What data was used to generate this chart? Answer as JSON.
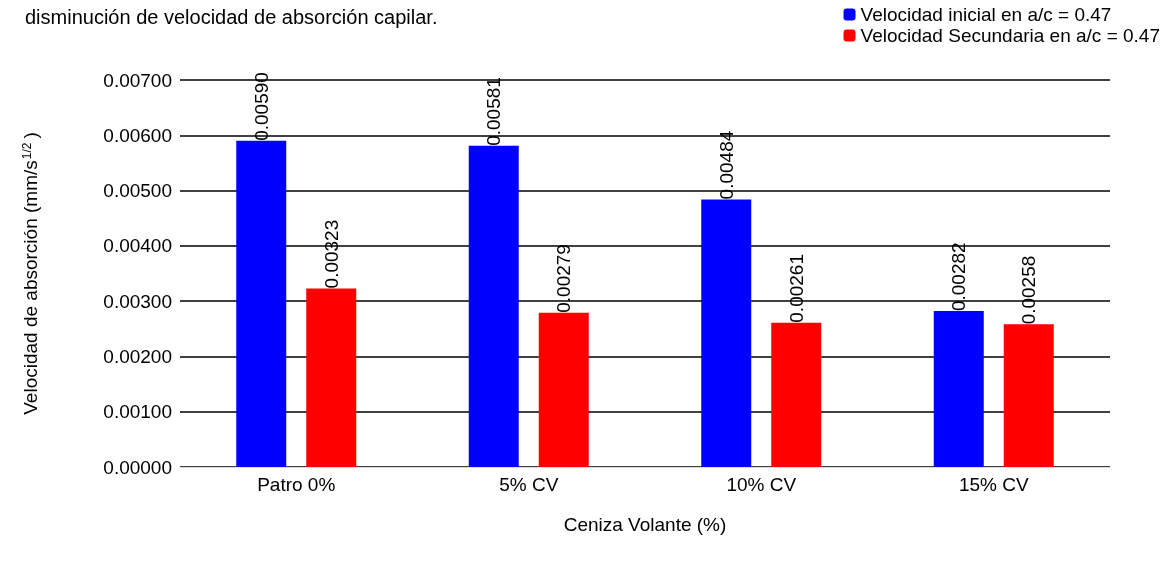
{
  "chart_data": {
    "type": "bar",
    "title": "disminución de velocidad de absorción capilar.",
    "xlabel": "Ceniza Volante (%)",
    "ylabel": "Velocidad de absorción (mm/s$^{1/2}$)",
    "categories": [
      "Patro 0%",
      "5% CV",
      "10% CV",
      "15% CV"
    ],
    "series": [
      {
        "name": "Velocidad inicial en a/c = 0.47",
        "color": "#0000ff",
        "values": [
          0.0059,
          0.00581,
          0.00484,
          0.00282
        ],
        "value_labels": [
          "0.00590",
          "0.00581",
          "0.00484",
          "0.00282"
        ]
      },
      {
        "name": "Velocidad Secundaria en a/c = 0.47",
        "color": "#ff0000",
        "values": [
          0.00323,
          0.00279,
          0.00261,
          0.00258
        ],
        "value_labels": [
          "0.00323",
          "0.00279",
          "0.00261",
          "0.00258"
        ]
      }
    ],
    "ylim": [
      0,
      0.007
    ],
    "yticks": [
      {
        "value": 0,
        "label": "0.00000"
      },
      {
        "value": 0.001,
        "label": "0.00100"
      },
      {
        "value": 0.002,
        "label": "0.00200"
      },
      {
        "value": 0.003,
        "label": "0.00300"
      },
      {
        "value": 0.004,
        "label": "0.00400"
      },
      {
        "value": 0.005,
        "label": "0.00500"
      },
      {
        "value": 0.006,
        "label": "0.00600"
      },
      {
        "value": 0.007,
        "label": "0.00700"
      }
    ],
    "grid": "y",
    "legend": "top right"
  }
}
